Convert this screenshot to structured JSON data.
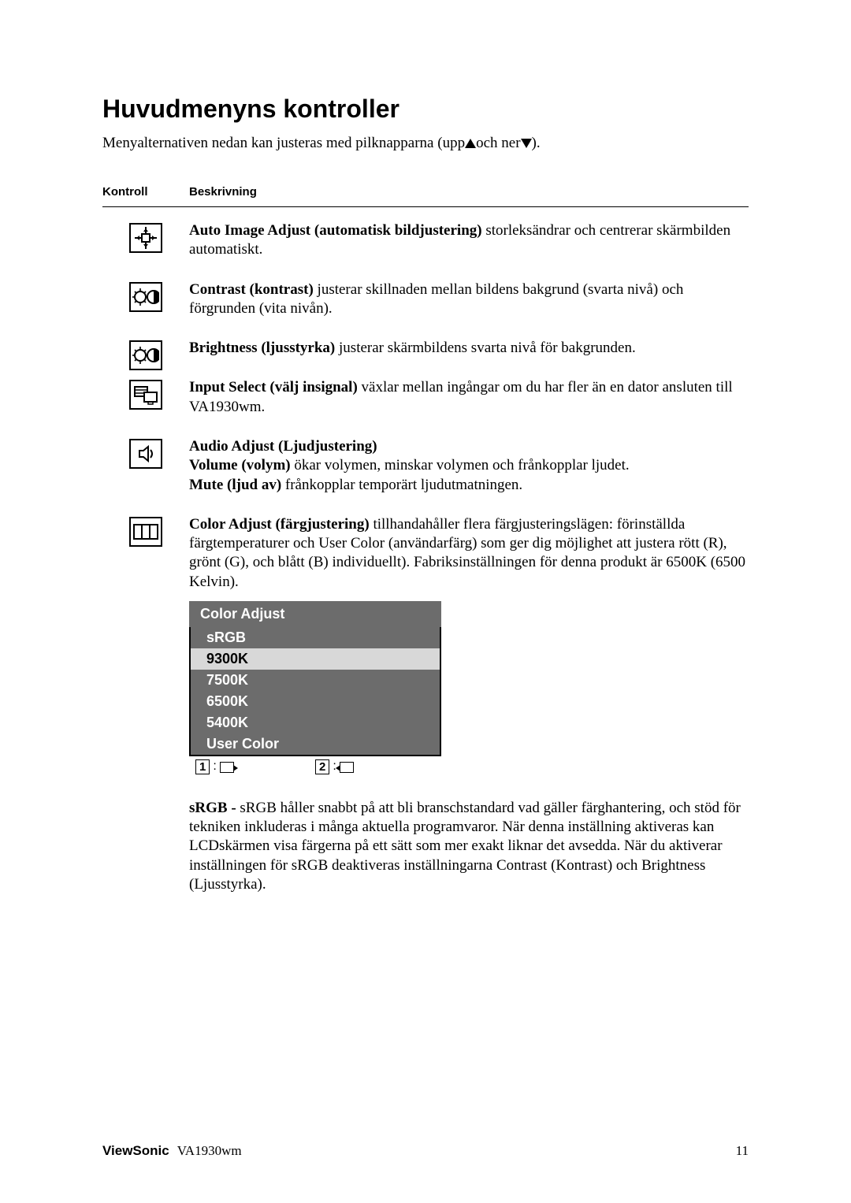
{
  "title": "Huvudmenyns kontroller",
  "intro_pre": "Menyalternativen nedan kan justeras med pilknapparna (upp",
  "intro_mid": "och ner",
  "intro_post": ").",
  "table_headers": {
    "col1": "Kontroll",
    "col2": "Beskrivning"
  },
  "rows": {
    "auto": {
      "b": "Auto Image Adjust (automatisk bildjustering)",
      "t": " storleksändrar och centrerar skärmbilden automatiskt."
    },
    "contrast": {
      "b": "Contrast (kontrast)",
      "t": " justerar skillnaden mellan bildens bakgrund (svarta nivå) och förgrunden (vita nivån)."
    },
    "bright": {
      "b": "Brightness (ljusstyrka)",
      "t": " justerar skärmbildens svarta nivå för bakgrunden."
    },
    "input": {
      "b": "Input Select (välj insignal)",
      "t": " växlar mellan ingångar om du har fler än en dator ansluten till VA1930wm."
    },
    "audio": {
      "h": "Audio Adjust (Ljudjustering)",
      "vol_b": "Volume (volym)",
      "vol_t": " ökar volymen, minskar volymen och frånkopplar ljudet.",
      "mute_b": "Mute (ljud av)",
      "mute_t": " frånkopplar temporärt ljudutmatningen."
    },
    "color": {
      "b": "Color Adjust (färgjustering)",
      "t": " tillhandahåller flera färgjusteringslägen: förinställda färgtemperaturer och User Color (användarfärg) som ger dig möjlighet att justera rött (R), grönt (G), och blått (B) individuellt). Fabriksinställningen för denna produkt är 6500K (6500 Kelvin)."
    }
  },
  "osd": {
    "title": "Color Adjust",
    "items": [
      "sRGB",
      "9300K",
      "7500K",
      "6500K",
      "5400K",
      "User Color"
    ],
    "selected_index": 1,
    "footer1": "1",
    "footer2": "2"
  },
  "srgb": {
    "b": "sRGB - ",
    "t": "sRGB håller snabbt på att bli branschstandard vad gäller färghantering, och stöd för tekniken inkluderas i många aktuella programvaror. När denna inställning aktiveras kan LCDskärmen visa färgerna på ett sätt som mer exakt liknar det avsedda. När du aktiverar inställningen för sRGB deaktiveras inställningarna Contrast (Kontrast) och Brightness (Ljusstyrka)."
  },
  "footer": {
    "brand": "ViewSonic",
    "model": "VA1930wm",
    "page": "11"
  },
  "colors": {
    "osd_bg": "#6c6c6c",
    "osd_sel_bg": "#d8d8d8",
    "text": "#000000",
    "page_bg": "#ffffff"
  }
}
